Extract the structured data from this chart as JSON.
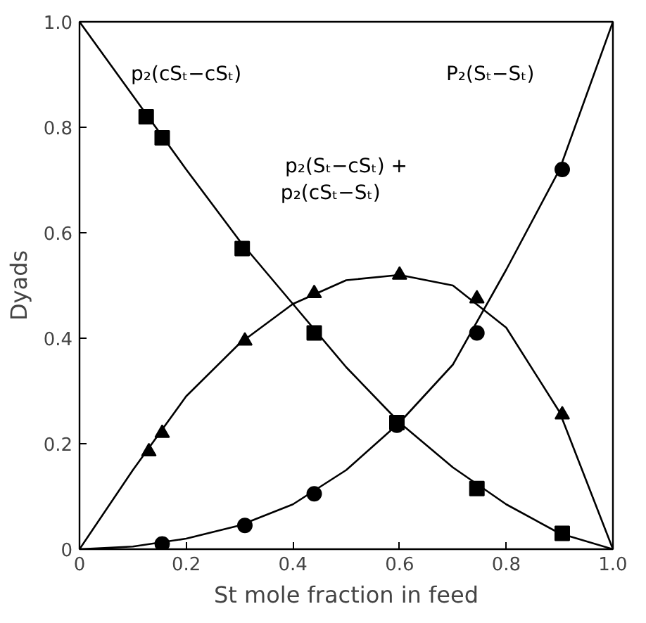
{
  "chart_data": {
    "type": "line",
    "xlabel": "St mole fraction in feed",
    "ylabel": "Dyads",
    "xlim": [
      0,
      1
    ],
    "ylim": [
      0,
      1
    ],
    "xticks": [
      0,
      0.2,
      0.4,
      0.6,
      0.8,
      {
        "value": 1,
        "label": "1.0"
      }
    ],
    "yticks": [
      0,
      0.2,
      0.4,
      0.6,
      0.8,
      {
        "value": 1,
        "label": "1.0"
      }
    ],
    "grid": false,
    "series": [
      {
        "type": "scatter",
        "marker": "square",
        "color": "#000000",
        "x": [
          0.125,
          0.155,
          0.305,
          0.44,
          0.595,
          0.745,
          0.905
        ],
        "values": [
          0.82,
          0.78,
          0.57,
          0.41,
          0.24,
          0.115,
          0.03
        ]
      },
      {
        "type": "scatter",
        "marker": "triangle",
        "color": "#000000",
        "x": [
          0.13,
          0.155,
          0.31,
          0.44,
          0.6,
          0.745,
          0.905
        ],
        "values": [
          0.185,
          0.22,
          0.395,
          0.485,
          0.52,
          0.475,
          0.255
        ]
      },
      {
        "type": "scatter",
        "marker": "circle",
        "color": "#000000",
        "x": [
          0.155,
          0.31,
          0.44,
          0.595,
          0.745,
          0.905
        ],
        "values": [
          0.01,
          0.045,
          0.105,
          0.235,
          0.41,
          0.72
        ]
      },
      {
        "color": "#000000",
        "x": [
          0,
          0.1,
          0.2,
          0.3,
          0.4,
          0.5,
          0.6,
          0.7,
          0.8,
          0.9,
          1.0
        ],
        "values": [
          1,
          0.86,
          0.72,
          0.585,
          0.465,
          0.345,
          0.24,
          0.155,
          0.085,
          0.03,
          0
        ]
      },
      {
        "color": "#000000",
        "x": [
          0,
          0.1,
          0.2,
          0.3,
          0.4,
          0.5,
          0.6,
          0.7,
          0.8,
          0.9,
          1.0
        ],
        "values": [
          0,
          0.15,
          0.29,
          0.39,
          0.465,
          0.51,
          0.52,
          0.5,
          0.42,
          0.26,
          0
        ]
      },
      {
        "color": "#000000",
        "x": [
          0,
          0.1,
          0.2,
          0.3,
          0.4,
          0.5,
          0.6,
          0.7,
          0.8,
          0.9,
          1.0
        ],
        "values": [
          0,
          0.005,
          0.02,
          0.045,
          0.085,
          0.15,
          0.24,
          0.35,
          0.53,
          0.72,
          1
        ]
      }
    ],
    "annotations": [
      "p₂(cSₜ−cSₜ)",
      "P₂(Sₜ−Sₜ)",
      "p₂(Sₜ−cSₜ) +\n     p₂(cSₜ−Sₜ)"
    ]
  }
}
